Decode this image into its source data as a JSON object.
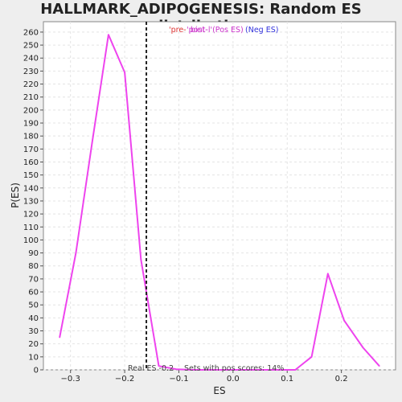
{
  "chart_data": {
    "type": "line",
    "title": "HALLMARK_ADIPOGENESIS: Random ES distribution",
    "xlabel": "ES",
    "ylabel": "P(ES)",
    "xlim": [
      -0.35,
      0.3
    ],
    "ylim": [
      0,
      268
    ],
    "x_ticks": [
      -0.3,
      -0.2,
      -0.1,
      0.0,
      0.1,
      0.2
    ],
    "x_tick_labels": [
      "−0.3",
      "−0.2",
      "−0.1",
      "0.0",
      "0.1",
      "0.2"
    ],
    "y_ticks": [
      0,
      10,
      20,
      30,
      40,
      50,
      60,
      70,
      80,
      90,
      100,
      110,
      120,
      130,
      140,
      150,
      160,
      170,
      180,
      190,
      200,
      210,
      220,
      230,
      240,
      250,
      260
    ],
    "grid": true,
    "series": [
      {
        "color": "#ee44ee",
        "x": [
          -0.32,
          -0.29,
          -0.26,
          -0.23,
          -0.2,
          -0.17,
          -0.137,
          -0.105,
          -0.075,
          -0.045,
          -0.015,
          0.015,
          0.045,
          0.075,
          0.115,
          0.145,
          0.175,
          0.205,
          0.24,
          0.27
        ],
        "y": [
          25,
          90,
          175,
          258,
          229,
          85,
          3,
          0.5,
          0,
          0,
          0,
          0,
          0,
          0,
          0,
          10,
          74,
          38,
          17,
          3
        ]
      }
    ],
    "real_es": -0.16,
    "legend": {
      "pre_label": "'pre-",
      "pos_label": "'post-",
      "mid_label": "bint-l'(Pos ES)",
      "neg_label": "(Neg ES)",
      "pre_color": "#dd3333",
      "pos_color": "#cc33cc",
      "neg_color": "#3333dd"
    },
    "annotations": {
      "real_es": "Real ES -0.2",
      "pos_scores": "Sets with pos scores: 14%"
    }
  }
}
